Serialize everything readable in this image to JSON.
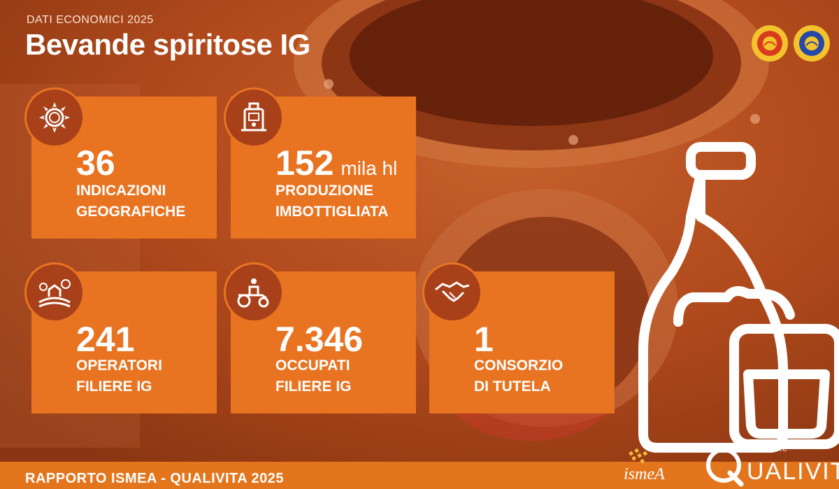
{
  "header": {
    "eyebrow": "DATI ECONOMICI 2025",
    "title": "Bevande spiritose IG"
  },
  "seals": [
    {
      "name": "dop-seal-icon",
      "color": "#d83a1f"
    },
    {
      "name": "igp-seal-icon",
      "color": "#2649a8"
    }
  ],
  "cards": [
    {
      "value": "36",
      "unit": "",
      "line1": "INDICAZIONI",
      "line2": "GEOGRAFICHE",
      "icon": "sun-icon"
    },
    {
      "value": "152",
      "unit": "mila hl",
      "line1": "PRODUZIONE",
      "line2": "IMBOTTIGLIATA",
      "icon": "bottling-machine-icon"
    },
    {
      "value": "241",
      "unit": "",
      "line1": "OPERATORI",
      "line2": "FILIERE IG",
      "icon": "farm-icon"
    },
    {
      "value": "7.346",
      "unit": "",
      "line1": "OCCUPATI",
      "line2": "FILIERE IG",
      "icon": "tractor-icon"
    },
    {
      "value": "1",
      "unit": "",
      "line1": "CONSORZIO",
      "line2": "DI TUTELA",
      "icon": "handshake-icon"
    }
  ],
  "footer": {
    "left_text": "RAPPORTO ISMEA - QUALIVITA 2025",
    "ismea_logo": "ismeA",
    "qualivita_small": "fondazione",
    "qualivita_big": "UALIVITA"
  },
  "colors": {
    "card": "#e87422",
    "badge": "#a8401a",
    "footer": "#e3761d"
  }
}
